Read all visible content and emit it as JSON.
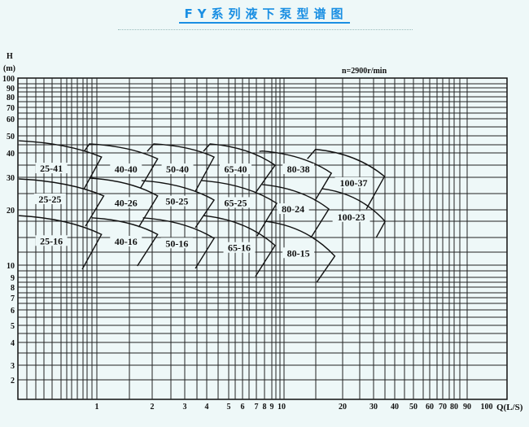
{
  "title": "FY系列液下泵型谱图",
  "chart_data": {
    "type": "line",
    "title": "FY系列液下泵型谱图",
    "xlabel": "Q(L/S)",
    "ylabel_line1": "H",
    "ylabel_line2": "(m)",
    "annotation": "n=2900r/min",
    "x_scale": "log",
    "y_scale": "log",
    "grid": true,
    "xlim": [
      0.37,
      100
    ],
    "ylim": [
      1.5,
      100
    ],
    "x_ticks": [
      1,
      2,
      3,
      4,
      5,
      6,
      7,
      8,
      9,
      10,
      20,
      30,
      40,
      50,
      60,
      70,
      80,
      90,
      100
    ],
    "y_ticks": [
      100,
      90,
      80,
      70,
      60,
      50,
      40,
      30,
      20,
      10,
      9,
      8,
      7,
      6,
      5,
      4,
      3,
      2
    ],
    "line_color": "#111111",
    "background_color": "#eef8f8",
    "title_color": "#1a8fe3",
    "pumps": [
      {
        "name": "25-41",
        "arc": [
          [
            0.37,
            46.9
          ],
          [
            1.06,
            38.1
          ]
        ],
        "right_end": [
          0.85,
          26.0
        ],
        "label_at": [
          0.56,
          33.0
        ]
      },
      {
        "name": "25-25",
        "arc": [
          [
            0.37,
            29.4
          ],
          [
            1.09,
            23.8
          ]
        ],
        "right_end": [
          0.865,
          16.3
        ],
        "label_at": [
          0.55,
          22.6
        ]
      },
      {
        "name": "25-16",
        "arc": [
          [
            0.37,
            18.6
          ],
          [
            1.06,
            14.7
          ]
        ],
        "right_end": [
          0.83,
          9.65
        ],
        "label_at": [
          0.56,
          13.4
        ]
      },
      {
        "name": "40-40",
        "left_start": [
          0.85,
          40.8
        ],
        "arc": [
          [
            0.91,
            45
          ],
          [
            2.14,
            37.3
          ]
        ],
        "right_end": [
          1.73,
          26.3
        ],
        "label_at": [
          1.44,
          32.7
        ]
      },
      {
        "name": "40-26",
        "arc": [
          [
            0.92,
            29.7
          ],
          [
            2.14,
            23.8
          ]
        ],
        "right_end": [
          1.69,
          16.1
        ],
        "label_at": [
          1.44,
          21.6
        ]
      },
      {
        "name": "40-16",
        "arc": [
          [
            0.94,
            18.1
          ],
          [
            2.14,
            14.7
          ]
        ],
        "right_end": [
          1.66,
          9.93
        ],
        "label_at": [
          1.44,
          13.3
        ]
      },
      {
        "name": "50-40",
        "left_start": [
          1.88,
          40.8
        ],
        "arc": [
          [
            2.04,
            45
          ],
          [
            4.31,
            38.1
          ]
        ],
        "right_end": [
          3.45,
          25.2
        ],
        "label_at": [
          2.74,
          32.7
        ]
      },
      {
        "name": "50-25",
        "arc": [
          [
            1.75,
            28.8
          ],
          [
            4.31,
            22.6
          ]
        ],
        "right_end": [
          3.45,
          16.0
        ],
        "label_at": [
          2.72,
          22.0
        ]
      },
      {
        "name": "50-16",
        "arc": [
          [
            1.78,
            18.1
          ],
          [
            4.31,
            14.0
          ]
        ],
        "right_end": [
          3.45,
          9.72
        ],
        "label_at": [
          2.72,
          13.0
        ]
      },
      {
        "name": "65-40",
        "left_start": [
          3.83,
          40.8
        ],
        "arc": [
          [
            4.14,
            45
          ],
          [
            9.32,
            34.6
          ]
        ],
        "right_end": [
          6.93,
          24.7
        ],
        "label_at": [
          5.48,
          32.7
        ]
      },
      {
        "name": "65-25",
        "arc": [
          [
            3.75,
            28.8
          ],
          [
            9.49,
            21.7
          ]
        ],
        "right_end": [
          7.08,
          14.4
        ],
        "label_at": [
          5.48,
          21.6
        ]
      },
      {
        "name": "65-16",
        "arc": [
          [
            3.83,
            18.6
          ],
          [
            9.32,
            12.8
          ]
        ],
        "right_end": [
          6.93,
          9.07
        ],
        "label_at": [
          5.75,
          12.3
        ]
      },
      {
        "name": "80-38",
        "left_start": [
          7.35,
          40.8
        ],
        "arc": [
          [
            7.7,
            41.0
          ],
          [
            17.6,
            31.5
          ]
        ],
        "right_end": [
          14.6,
          22.4
        ],
        "label_at": [
          12.1,
          32.7
        ]
      },
      {
        "name": "80-24",
        "arc": [
          [
            7.7,
            27.4
          ],
          [
            17.1,
            20.2
          ]
        ],
        "right_end": [
          14.0,
          14.2
        ],
        "label_at": [
          11.4,
          20.0
        ]
      },
      {
        "name": "80-15",
        "arc": [
          [
            8.21,
            17.3
          ],
          [
            18.3,
            11.2
          ]
        ],
        "right_end": [
          14.9,
          8.48
        ],
        "label_at": [
          12.1,
          11.5
        ]
      },
      {
        "name": "100-37",
        "left_start": [
          13.4,
          37.3
        ],
        "arc": [
          [
            14.7,
            41.9
          ],
          [
            34.8,
            30.3
          ]
        ],
        "right_end": [
          27.3,
          20.2
        ],
        "label_at": [
          23.1,
          27.7
        ]
      },
      {
        "name": "100-23",
        "arc": [
          [
            15.9,
            26.0
          ],
          [
            35.1,
            17.3
          ]
        ],
        "right_end": [
          31.2,
          14.2
        ],
        "label_at": [
          22.4,
          18.1
        ]
      }
    ]
  }
}
